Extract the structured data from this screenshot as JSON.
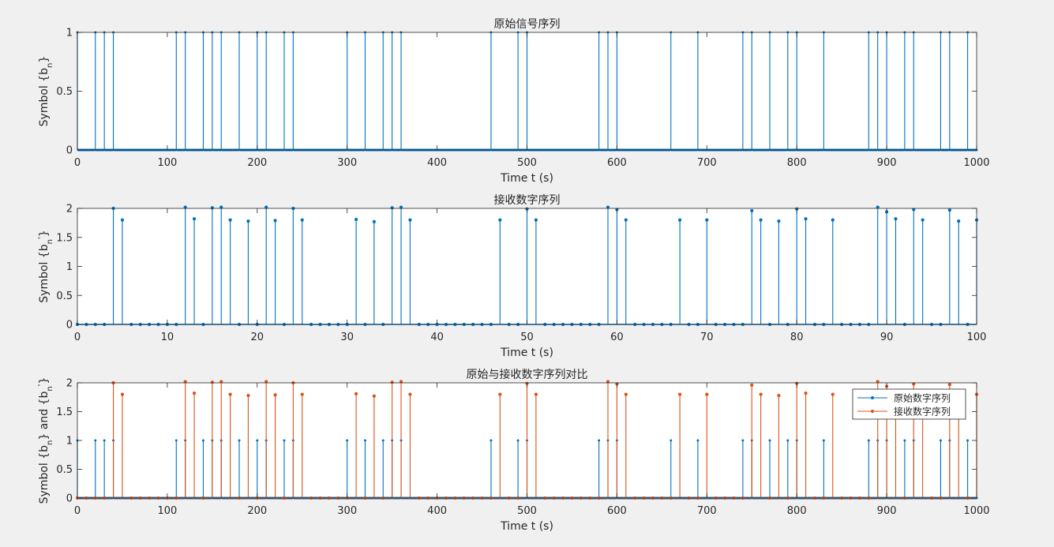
{
  "figure": {
    "background": "#f0f0f0",
    "axes_background": "#ffffff",
    "axis_color": "#262626",
    "series_colors": [
      "#0072bd",
      "#d95319"
    ]
  },
  "chart_data": [
    {
      "type": "stem",
      "title": "原始信号序列",
      "xlabel": "Time t (s)",
      "ylabel": "Symbol {b_n}",
      "xlim": [
        0,
        1000
      ],
      "ylim": [
        0,
        1
      ],
      "xticks": [
        0,
        100,
        200,
        300,
        400,
        500,
        600,
        700,
        800,
        900,
        1000
      ],
      "yticks": [
        0,
        0.5,
        1
      ],
      "ytick_labels": [
        "0",
        "0.5",
        "1"
      ],
      "grid": false,
      "legend": null,
      "series": [
        {
          "color": "#0072bd",
          "x": [
            0,
            20,
            30,
            40,
            110,
            120,
            140,
            150,
            160,
            180,
            200,
            210,
            230,
            240,
            300,
            320,
            340,
            350,
            360,
            460,
            490,
            500,
            580,
            590,
            600,
            660,
            690,
            740,
            750,
            770,
            790,
            800,
            830,
            880,
            890,
            900,
            920,
            930,
            960,
            970,
            990
          ],
          "y_one": 1,
          "baseline_points_between": true
        }
      ]
    },
    {
      "type": "stem",
      "title": "接收数字序列",
      "xlabel": "Time t (s)",
      "ylabel": "Symbol {b_n'}",
      "xlim": [
        0,
        100
      ],
      "ylim": [
        0,
        2
      ],
      "xticks": [
        0,
        10,
        20,
        30,
        40,
        50,
        60,
        70,
        80,
        90,
        100
      ],
      "yticks": [
        0,
        0.5,
        1,
        1.5,
        2
      ],
      "ytick_labels": [
        "0",
        "0.5",
        "1",
        "1.5",
        "2"
      ],
      "grid": false,
      "legend": null,
      "series": [
        {
          "color": "#0072bd",
          "x": [
            0,
            1,
            2,
            3,
            4,
            5,
            6,
            7,
            8,
            9,
            10,
            11,
            12,
            13,
            14,
            15,
            16,
            17,
            18,
            19,
            20,
            21,
            22,
            23,
            24,
            25,
            26,
            27,
            28,
            29,
            30,
            31,
            32,
            33,
            34,
            35,
            36,
            37,
            38,
            39,
            40,
            41,
            42,
            43,
            44,
            45,
            46,
            47,
            48,
            49,
            50,
            51,
            52,
            53,
            54,
            55,
            56,
            57,
            58,
            59,
            60,
            61,
            62,
            63,
            64,
            65,
            66,
            67,
            68,
            69,
            70,
            71,
            72,
            73,
            74,
            75,
            76,
            77,
            78,
            79,
            80,
            81,
            82,
            83,
            84,
            85,
            86,
            87,
            88,
            89,
            90,
            91,
            92,
            93,
            94,
            95,
            96,
            97,
            98,
            99,
            100
          ],
          "y": [
            0,
            0,
            0,
            0,
            2.0,
            1.8,
            0,
            0,
            0,
            0,
            0,
            0,
            2.02,
            1.82,
            0,
            2.01,
            2.02,
            1.8,
            0,
            1.78,
            0,
            2.02,
            1.79,
            0,
            2.0,
            1.8,
            0,
            0,
            0,
            0,
            0,
            1.81,
            0,
            1.77,
            0,
            2.01,
            2.02,
            1.8,
            0,
            0,
            0,
            0,
            0,
            0,
            0,
            0,
            0,
            1.8,
            0,
            0,
            1.99,
            1.8,
            0,
            0,
            0,
            0,
            0,
            0,
            0,
            2.02,
            1.98,
            1.8,
            0,
            0,
            0,
            0,
            0,
            1.8,
            0,
            0,
            1.8,
            0,
            0,
            0,
            0,
            1.96,
            1.8,
            0,
            1.78,
            0,
            1.99,
            1.82,
            0,
            0,
            1.8,
            0,
            0,
            0,
            0,
            2.02,
            1.94,
            1.82,
            0,
            1.98,
            1.8,
            0,
            0,
            1.97,
            1.78,
            0,
            1.8
          ]
        }
      ]
    },
    {
      "type": "stem",
      "title": "原始与接收数字序列对比",
      "xlabel": "Time t (s)",
      "ylabel": "Symbol {b_n} and {b_n'}",
      "xlim": [
        0,
        1000
      ],
      "ylim": [
        0,
        2
      ],
      "xticks": [
        0,
        100,
        200,
        300,
        400,
        500,
        600,
        700,
        800,
        900,
        1000
      ],
      "yticks": [
        0,
        0.5,
        1,
        1.5,
        2
      ],
      "ytick_labels": [
        "0",
        "0.5",
        "1",
        "1.5",
        "2"
      ],
      "grid": false,
      "legend": {
        "location": "top-right",
        "entries": [
          "原始数字序列",
          "接收数字序列"
        ]
      },
      "series": [
        {
          "name": "原始数字序列",
          "color": "#0072bd",
          "x": [
            0,
            20,
            30,
            40,
            110,
            120,
            140,
            150,
            160,
            180,
            200,
            210,
            230,
            240,
            300,
            320,
            340,
            350,
            360,
            460,
            490,
            500,
            580,
            590,
            600,
            660,
            690,
            740,
            750,
            770,
            790,
            800,
            830,
            880,
            890,
            900,
            920,
            930,
            960,
            970,
            990
          ],
          "y_one": 1,
          "baseline_points_between": true
        },
        {
          "name": "接收数字序列",
          "color": "#d95319",
          "x": [
            0,
            10,
            20,
            30,
            40,
            50,
            60,
            70,
            80,
            90,
            100,
            110,
            120,
            130,
            140,
            150,
            160,
            170,
            180,
            190,
            200,
            210,
            220,
            230,
            240,
            250,
            260,
            270,
            280,
            290,
            300,
            310,
            320,
            330,
            340,
            350,
            360,
            370,
            380,
            390,
            400,
            410,
            420,
            430,
            440,
            450,
            460,
            470,
            480,
            490,
            500,
            510,
            520,
            530,
            540,
            550,
            560,
            570,
            580,
            590,
            600,
            610,
            620,
            630,
            640,
            650,
            660,
            670,
            680,
            690,
            700,
            710,
            720,
            730,
            740,
            750,
            760,
            770,
            780,
            790,
            800,
            810,
            820,
            830,
            840,
            850,
            860,
            870,
            880,
            890,
            900,
            910,
            920,
            930,
            940,
            950,
            960,
            970,
            980,
            990,
            1000
          ],
          "y": [
            0,
            0,
            0,
            0,
            2.0,
            1.8,
            0,
            0,
            0,
            0,
            0,
            0,
            2.02,
            1.82,
            0,
            2.01,
            2.02,
            1.8,
            0,
            1.78,
            0,
            2.02,
            1.79,
            0,
            2.0,
            1.8,
            0,
            0,
            0,
            0,
            0,
            1.81,
            0,
            1.77,
            0,
            2.01,
            2.02,
            1.8,
            0,
            0,
            0,
            0,
            0,
            0,
            0,
            0,
            0,
            1.8,
            0,
            0,
            1.99,
            1.8,
            0,
            0,
            0,
            0,
            0,
            0,
            0,
            2.02,
            1.98,
            1.8,
            0,
            0,
            0,
            0,
            0,
            1.8,
            0,
            0,
            1.8,
            0,
            0,
            0,
            0,
            1.96,
            1.8,
            0,
            1.78,
            0,
            1.99,
            1.82,
            0,
            0,
            1.8,
            0,
            0,
            0,
            0,
            2.02,
            1.94,
            1.82,
            0,
            1.98,
            1.8,
            0,
            0,
            1.97,
            1.78,
            0,
            1.8
          ]
        }
      ]
    }
  ]
}
